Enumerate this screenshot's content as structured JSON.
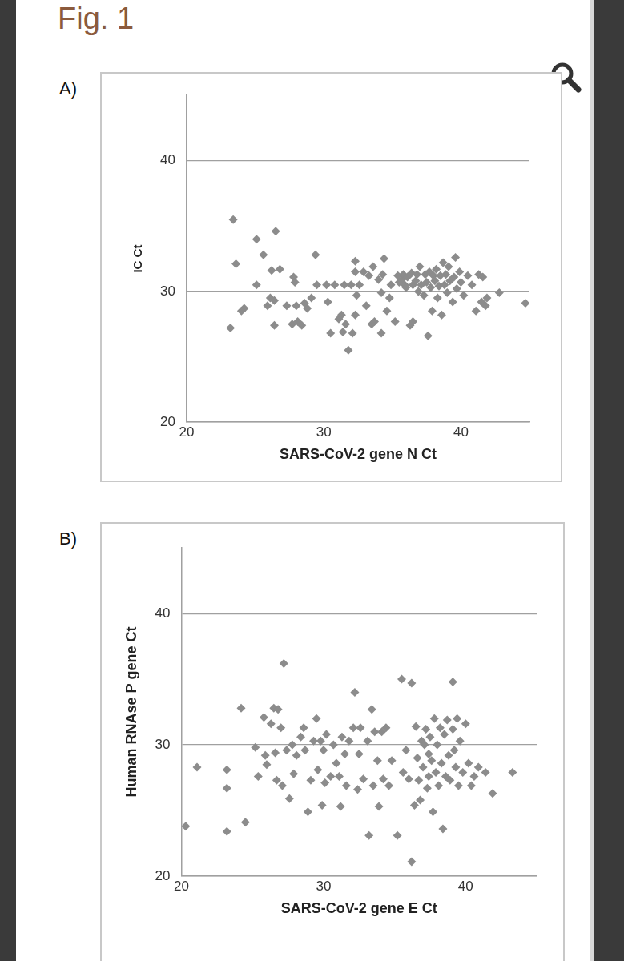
{
  "title": "Fig. 1",
  "chart_data": [
    {
      "type": "scatter",
      "title": "A)",
      "xlabel": "SARS-CoV-2 gene N Ct",
      "ylabel": "IC Ct",
      "color": "#8c8c8c",
      "marker": "diamond",
      "grid": true,
      "xlim": [
        20,
        45
      ],
      "xticks": [
        20,
        30,
        40
      ],
      "ylim": [
        20,
        45
      ],
      "yticks": [
        20,
        30,
        40
      ],
      "x": [
        23.4,
        23.6,
        23.2,
        24.2,
        24.0,
        25.1,
        25.6,
        25.1,
        26.5,
        26.2,
        26.8,
        26.1,
        26.4,
        26.4,
        25.9,
        27.3,
        27.8,
        27.9,
        28.0,
        27.7,
        28.1,
        28.4,
        28.6,
        28.8,
        29.1,
        29.4,
        29.5,
        30.3,
        30.2,
        30.5,
        30.8,
        31.1,
        31.3,
        31.5,
        31.6,
        31.4,
        31.8,
        32.1,
        32.0,
        32.3,
        32.3,
        32.4,
        32.3,
        32.6,
        32.9,
        33.1,
        33.3,
        33.5,
        33.6,
        33.7,
        34.0,
        34.2,
        34.2,
        34.3,
        34.4,
        34.6,
        34.8,
        34.9,
        35.2,
        35.4,
        35.5,
        35.7,
        35.8,
        35.9,
        36.0,
        36.1,
        36.3,
        36.4,
        36.5,
        36.5,
        36.7,
        36.8,
        36.9,
        37.0,
        37.1,
        37.3,
        37.4,
        37.5,
        37.6,
        37.7,
        37.8,
        37.9,
        38.0,
        38.1,
        38.2,
        38.3,
        38.4,
        38.5,
        38.6,
        38.7,
        38.8,
        38.9,
        39.0,
        39.1,
        39.2,
        39.4,
        39.5,
        39.6,
        39.7,
        39.9,
        40.0,
        40.2,
        40.5,
        40.8,
        41.1,
        41.3,
        41.5,
        41.6,
        41.8,
        41.9,
        42.8,
        44.7
      ],
      "values": [
        35.5,
        32.1,
        27.2,
        28.7,
        28.5,
        34.0,
        32.8,
        30.5,
        34.6,
        31.6,
        31.7,
        29.5,
        29.3,
        27.4,
        28.9,
        28.9,
        31.1,
        30.7,
        28.9,
        27.5,
        27.7,
        27.4,
        29.1,
        28.7,
        29.5,
        32.8,
        30.5,
        29.2,
        30.5,
        26.8,
        30.5,
        27.9,
        28.2,
        30.5,
        27.5,
        26.9,
        25.5,
        26.8,
        30.5,
        32.3,
        31.5,
        29.7,
        28.2,
        30.5,
        31.5,
        28.9,
        31.2,
        27.5,
        31.9,
        27.7,
        30.9,
        29.9,
        26.8,
        31.3,
        32.5,
        28.5,
        29.5,
        30.5,
        27.7,
        31.2,
        30.7,
        30.9,
        31.3,
        30.5,
        30.3,
        31.1,
        27.4,
        31.4,
        30.5,
        27.7,
        30.8,
        31.3,
        30.0,
        31.9,
        30.5,
        29.7,
        31.3,
        30.7,
        26.6,
        31.5,
        30.3,
        28.5,
        31.2,
        30.8,
        31.7,
        29.5,
        30.4,
        31.2,
        28.2,
        32.2,
        30.5,
        31.3,
        29.9,
        31.9,
        30.8,
        29.2,
        31.1,
        32.6,
        30.2,
        31.5,
        30.7,
        29.7,
        31.2,
        30.5,
        28.5,
        31.3,
        29.2,
        31.1,
        28.9,
        29.5,
        29.9,
        29.1
      ]
    },
    {
      "type": "scatter",
      "title": "B)",
      "xlabel": "SARS-CoV-2 gene E Ct",
      "ylabel": "Human RNAse P gene Ct",
      "color": "#8c8c8c",
      "marker": "diamond",
      "grid": true,
      "xlim": [
        20,
        45
      ],
      "xticks": [
        20,
        30,
        40
      ],
      "ylim": [
        20,
        45
      ],
      "yticks": [
        20,
        30,
        40
      ],
      "x": [
        20.3,
        21.1,
        23.2,
        23.2,
        23.2,
        24.2,
        24.5,
        25.2,
        25.4,
        25.8,
        25.9,
        26.0,
        26.3,
        26.5,
        26.6,
        26.7,
        26.8,
        27.1,
        27.0,
        27.2,
        27.4,
        27.6,
        27.8,
        27.9,
        28.1,
        28.4,
        28.6,
        28.7,
        28.9,
        29.1,
        29.3,
        29.5,
        29.6,
        29.8,
        29.9,
        30.0,
        30.1,
        30.2,
        30.5,
        30.7,
        30.9,
        31.1,
        31.2,
        31.3,
        31.5,
        31.6,
        31.8,
        32.1,
        32.2,
        32.4,
        32.5,
        32.6,
        32.8,
        33.1,
        33.2,
        33.4,
        33.5,
        33.6,
        33.8,
        33.9,
        34.1,
        34.2,
        34.4,
        34.6,
        34.8,
        35.2,
        35.5,
        35.6,
        35.8,
        36.0,
        36.2,
        36.2,
        36.4,
        36.5,
        36.6,
        36.7,
        36.8,
        36.9,
        37.0,
        37.1,
        37.2,
        37.3,
        37.4,
        37.4,
        37.5,
        37.6,
        37.7,
        37.8,
        37.9,
        38.0,
        38.1,
        38.2,
        38.3,
        38.4,
        38.5,
        38.6,
        38.7,
        38.8,
        38.9,
        39.1,
        39.1,
        39.2,
        39.3,
        39.4,
        39.5,
        39.6,
        39.8,
        40.0,
        40.2,
        40.4,
        40.6,
        40.9,
        41.4,
        41.9,
        43.3
      ],
      "values": [
        23.8,
        28.3,
        28.1,
        26.7,
        23.4,
        32.8,
        24.1,
        29.8,
        27.6,
        32.1,
        29.2,
        28.5,
        31.6,
        32.8,
        29.4,
        27.3,
        32.7,
        26.9,
        31.3,
        36.2,
        29.6,
        25.9,
        30.0,
        27.8,
        29.2,
        30.6,
        31.3,
        29.6,
        24.9,
        27.3,
        30.3,
        32.0,
        28.1,
        30.3,
        25.4,
        29.6,
        27.1,
        30.8,
        27.6,
        30.0,
        28.6,
        27.6,
        25.3,
        30.6,
        29.3,
        26.9,
        30.3,
        31.3,
        34.0,
        26.6,
        29.3,
        31.3,
        27.4,
        30.3,
        23.1,
        32.7,
        26.9,
        31.0,
        28.8,
        25.3,
        31.0,
        27.4,
        31.3,
        26.9,
        28.8,
        23.1,
        35.0,
        27.9,
        29.6,
        27.4,
        21.1,
        34.7,
        25.4,
        31.4,
        29.0,
        27.3,
        25.8,
        30.3,
        28.3,
        30.0,
        31.2,
        26.7,
        29.3,
        27.6,
        30.6,
        28.8,
        24.9,
        32.0,
        27.9,
        30.0,
        26.9,
        31.3,
        28.6,
        23.6,
        30.8,
        27.6,
        31.9,
        29.2,
        27.3,
        34.8,
        31.2,
        29.6,
        28.3,
        32.0,
        26.9,
        30.3,
        27.9,
        31.6,
        28.6,
        26.9,
        27.6,
        28.3,
        27.9,
        26.3,
        27.9
      ]
    }
  ]
}
